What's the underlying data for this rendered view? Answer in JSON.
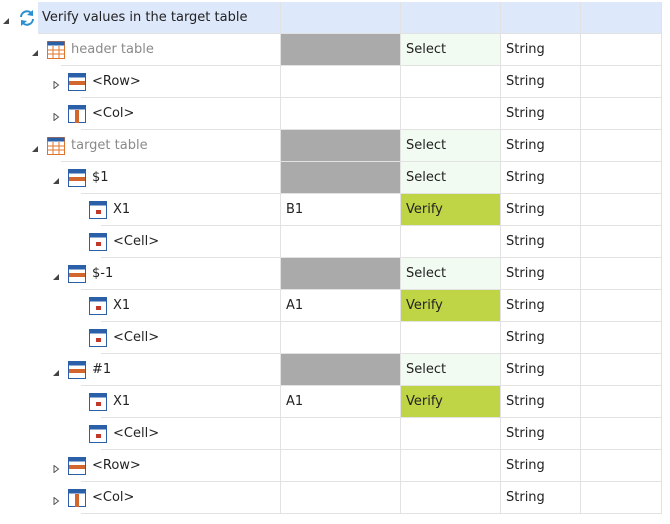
{
  "tree": {
    "rows": [
      {
        "label": "Verify values in the target table"
      },
      {
        "label": "header table",
        "action": "Select",
        "type": "String"
      },
      {
        "label": "<Row>",
        "type": "String"
      },
      {
        "label": "<Col>",
        "type": "String"
      },
      {
        "label": "target table",
        "action": "Select",
        "type": "String"
      },
      {
        "label": "$1",
        "action": "Select",
        "type": "String"
      },
      {
        "label": "X1",
        "value": "B1",
        "action": "Verify",
        "type": "String"
      },
      {
        "label": "<Cell>",
        "type": "String"
      },
      {
        "label": "$-1",
        "action": "Select",
        "type": "String"
      },
      {
        "label": "X1",
        "value": "A1",
        "action": "Verify",
        "type": "String"
      },
      {
        "label": "<Cell>",
        "type": "String"
      },
      {
        "label": "#1",
        "action": "Select",
        "type": "String"
      },
      {
        "label": "X1",
        "value": "A1",
        "action": "Verify",
        "type": "String"
      },
      {
        "label": "<Cell>",
        "type": "String"
      },
      {
        "label": "<Row>",
        "type": "String"
      },
      {
        "label": "<Col>",
        "type": "String"
      }
    ]
  }
}
